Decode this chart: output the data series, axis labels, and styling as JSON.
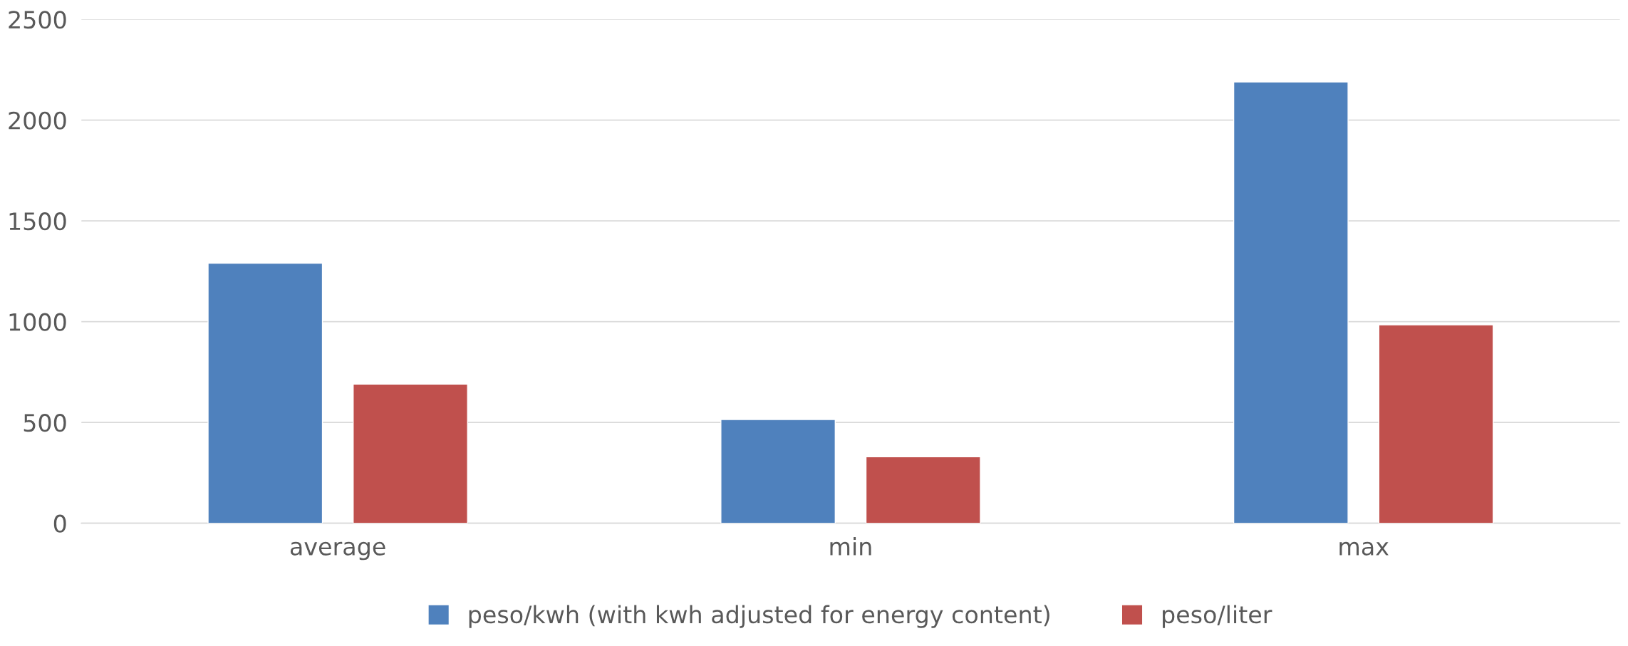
{
  "chart_data": {
    "type": "bar",
    "categories": [
      "average",
      "min",
      "max"
    ],
    "series": [
      {
        "name": "peso/kwh (with kwh adjusted for energy content)",
        "color": "#4f81bd",
        "values": [
          1290,
          515,
          2190
        ]
      },
      {
        "name": "peso/liter",
        "color": "#c0504d",
        "values": [
          690,
          330,
          985
        ]
      }
    ],
    "ylim": [
      0,
      2500
    ],
    "yticks": [
      0,
      500,
      1000,
      1500,
      2000,
      2500
    ],
    "grid": "y",
    "legend": "bottom"
  }
}
